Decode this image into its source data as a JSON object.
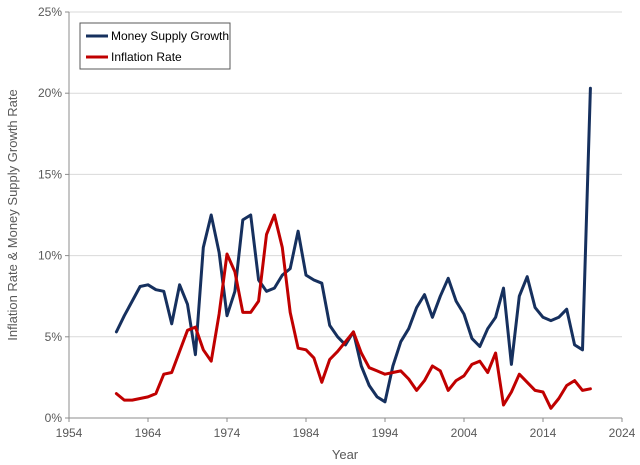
{
  "chart_data": {
    "type": "line",
    "xlabel": "Year",
    "ylabel": "Inflation Rate & Money Supply Growth Rate",
    "xlim": [
      1954,
      2024
    ],
    "ylim": [
      0,
      25
    ],
    "x_ticks": [
      "1954",
      "1964",
      "1974",
      "1984",
      "1994",
      "2004",
      "2014",
      "2024"
    ],
    "y_ticks": [
      "0%",
      "5%",
      "10%",
      "15%",
      "20%",
      "25%"
    ],
    "grid": "horizontal",
    "legend_position": "top-left",
    "series": [
      {
        "name": "Money Supply Growth",
        "color": "#16305e",
        "points": [
          [
            1960,
            5.3
          ],
          [
            1961,
            6.3
          ],
          [
            1962,
            7.2
          ],
          [
            1963,
            8.1
          ],
          [
            1964,
            8.2
          ],
          [
            1965,
            7.9
          ],
          [
            1966,
            7.8
          ],
          [
            1967,
            5.8
          ],
          [
            1968,
            8.2
          ],
          [
            1969,
            7.0
          ],
          [
            1970,
            3.9
          ],
          [
            1971,
            10.5
          ],
          [
            1972,
            12.5
          ],
          [
            1973,
            10.2
          ],
          [
            1974,
            6.3
          ],
          [
            1975,
            7.8
          ],
          [
            1976,
            12.2
          ],
          [
            1977,
            12.5
          ],
          [
            1978,
            8.5
          ],
          [
            1979,
            7.8
          ],
          [
            1980,
            8.0
          ],
          [
            1981,
            8.8
          ],
          [
            1982,
            9.2
          ],
          [
            1983,
            11.5
          ],
          [
            1984,
            8.8
          ],
          [
            1985,
            8.5
          ],
          [
            1986,
            8.3
          ],
          [
            1987,
            5.7
          ],
          [
            1988,
            5.0
          ],
          [
            1989,
            4.5
          ],
          [
            1990,
            5.3
          ],
          [
            1991,
            3.2
          ],
          [
            1992,
            2.0
          ],
          [
            1993,
            1.3
          ],
          [
            1994,
            1.0
          ],
          [
            1995,
            3.2
          ],
          [
            1996,
            4.7
          ],
          [
            1997,
            5.5
          ],
          [
            1998,
            6.8
          ],
          [
            1999,
            7.6
          ],
          [
            2000,
            6.2
          ],
          [
            2001,
            7.5
          ],
          [
            2002,
            8.6
          ],
          [
            2003,
            7.2
          ],
          [
            2004,
            6.4
          ],
          [
            2005,
            4.9
          ],
          [
            2006,
            4.4
          ],
          [
            2007,
            5.5
          ],
          [
            2008,
            6.2
          ],
          [
            2009,
            8.0
          ],
          [
            2010,
            3.3
          ],
          [
            2011,
            7.5
          ],
          [
            2012,
            8.7
          ],
          [
            2013,
            6.8
          ],
          [
            2014,
            6.2
          ],
          [
            2015,
            6.0
          ],
          [
            2016,
            6.2
          ],
          [
            2017,
            6.7
          ],
          [
            2018,
            4.5
          ],
          [
            2019,
            4.2
          ],
          [
            2020,
            20.3
          ]
        ]
      },
      {
        "name": "Inflation Rate",
        "color": "#c00000",
        "points": [
          [
            1960,
            1.5
          ],
          [
            1961,
            1.1
          ],
          [
            1962,
            1.1
          ],
          [
            1963,
            1.2
          ],
          [
            1964,
            1.3
          ],
          [
            1965,
            1.5
          ],
          [
            1966,
            2.7
          ],
          [
            1967,
            2.8
          ],
          [
            1968,
            4.1
          ],
          [
            1969,
            5.4
          ],
          [
            1970,
            5.6
          ],
          [
            1971,
            4.2
          ],
          [
            1972,
            3.5
          ],
          [
            1973,
            6.4
          ],
          [
            1974,
            10.1
          ],
          [
            1975,
            9.0
          ],
          [
            1976,
            6.5
          ],
          [
            1977,
            6.5
          ],
          [
            1978,
            7.2
          ],
          [
            1979,
            11.3
          ],
          [
            1980,
            12.5
          ],
          [
            1981,
            10.5
          ],
          [
            1982,
            6.5
          ],
          [
            1983,
            4.3
          ],
          [
            1984,
            4.2
          ],
          [
            1985,
            3.7
          ],
          [
            1986,
            2.2
          ],
          [
            1987,
            3.6
          ],
          [
            1988,
            4.1
          ],
          [
            1989,
            4.7
          ],
          [
            1990,
            5.3
          ],
          [
            1991,
            4.0
          ],
          [
            1992,
            3.1
          ],
          [
            1993,
            2.9
          ],
          [
            1994,
            2.7
          ],
          [
            1995,
            2.8
          ],
          [
            1996,
            2.9
          ],
          [
            1997,
            2.4
          ],
          [
            1998,
            1.7
          ],
          [
            1999,
            2.3
          ],
          [
            2000,
            3.2
          ],
          [
            2001,
            2.9
          ],
          [
            2002,
            1.7
          ],
          [
            2003,
            2.3
          ],
          [
            2004,
            2.6
          ],
          [
            2005,
            3.3
          ],
          [
            2006,
            3.5
          ],
          [
            2007,
            2.8
          ],
          [
            2008,
            4.0
          ],
          [
            2009,
            0.8
          ],
          [
            2010,
            1.6
          ],
          [
            2011,
            2.7
          ],
          [
            2012,
            2.2
          ],
          [
            2013,
            1.7
          ],
          [
            2014,
            1.6
          ],
          [
            2015,
            0.6
          ],
          [
            2016,
            1.2
          ],
          [
            2017,
            2.0
          ],
          [
            2018,
            2.3
          ],
          [
            2019,
            1.7
          ],
          [
            2020,
            1.8
          ]
        ]
      }
    ]
  }
}
